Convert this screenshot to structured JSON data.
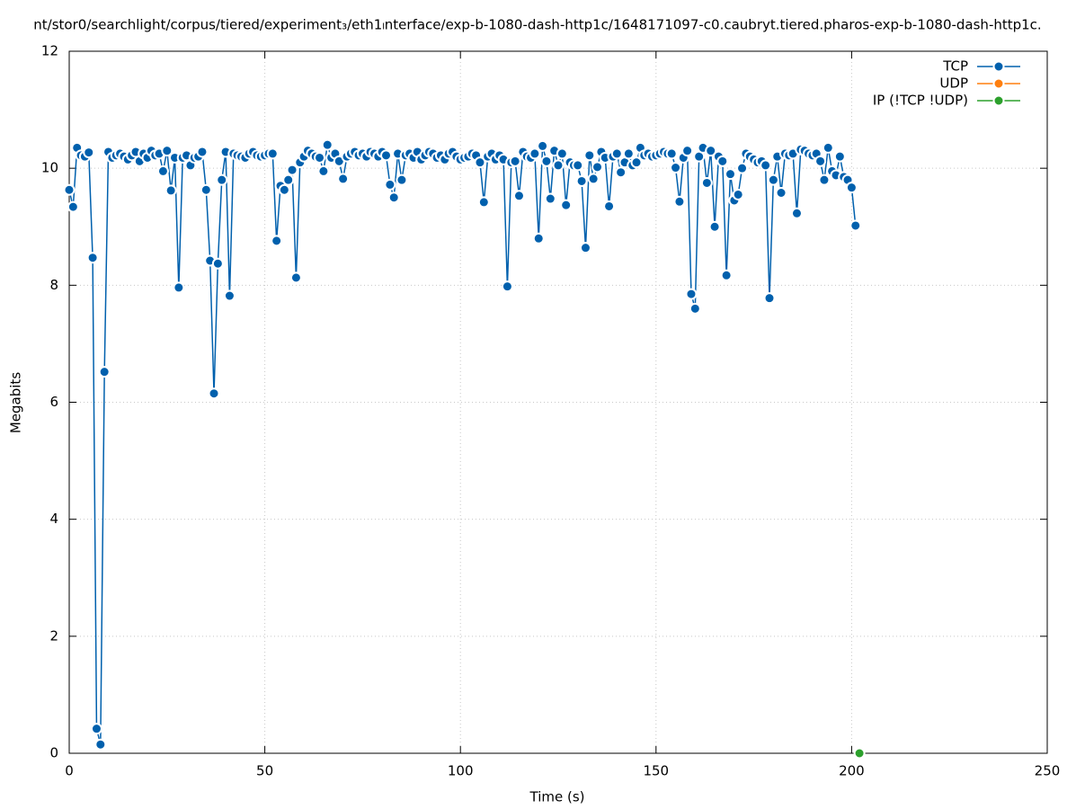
{
  "chart_data": {
    "type": "line",
    "title": "nt/stor0/searchlight/corpus/tiered/experiment₃/eth1ₗnterface/exp-b-1080-dash-http1c/1648171097-c0.caubryt.tiered.pharos-exp-b-1080-dash-http1c.",
    "xlabel": "Time (s)",
    "ylabel": "Megabits",
    "xlim": [
      0,
      250
    ],
    "ylim": [
      0,
      12
    ],
    "xticks": [
      0,
      50,
      100,
      150,
      200,
      250
    ],
    "yticks": [
      0,
      2,
      4,
      6,
      8,
      10,
      12
    ],
    "grid": true,
    "legend": "top right",
    "series": [
      {
        "name": "TCP",
        "color": "#0060ad",
        "x": [
          0,
          1,
          2,
          3,
          4,
          5,
          6,
          7,
          8,
          9,
          10,
          11,
          12,
          13,
          14,
          15,
          16,
          17,
          18,
          19,
          20,
          21,
          22,
          23,
          24,
          25,
          26,
          27,
          28,
          29,
          30,
          31,
          32,
          33,
          34,
          35,
          36,
          37,
          38,
          39,
          40,
          41,
          42,
          43,
          44,
          45,
          46,
          47,
          48,
          49,
          50,
          51,
          52,
          53,
          54,
          55,
          56,
          57,
          58,
          59,
          60,
          61,
          62,
          63,
          64,
          65,
          66,
          67,
          68,
          69,
          70,
          71,
          72,
          73,
          74,
          75,
          76,
          77,
          78,
          79,
          80,
          81,
          82,
          83,
          84,
          85,
          86,
          87,
          88,
          89,
          90,
          91,
          92,
          93,
          94,
          95,
          96,
          97,
          98,
          99,
          100,
          101,
          102,
          103,
          104,
          105,
          106,
          107,
          108,
          109,
          110,
          111,
          112,
          113,
          114,
          115,
          116,
          117,
          118,
          119,
          120,
          121,
          122,
          123,
          124,
          125,
          126,
          127,
          128,
          129,
          130,
          131,
          132,
          133,
          134,
          135,
          136,
          137,
          138,
          139,
          140,
          141,
          142,
          143,
          144,
          145,
          146,
          147,
          148,
          149,
          150,
          151,
          152,
          153,
          154,
          155,
          156,
          157,
          158,
          159,
          160,
          161,
          162,
          163,
          164,
          165,
          166,
          167,
          168,
          169,
          170,
          171,
          172,
          173,
          174,
          175,
          176,
          177,
          178,
          179,
          180,
          181,
          182,
          183,
          184,
          185,
          186,
          187,
          188,
          189,
          190,
          191,
          192,
          193,
          194,
          195,
          196,
          197,
          198,
          199,
          200,
          201
        ],
        "values": [
          9.63,
          9.34,
          10.35,
          10.22,
          10.2,
          10.27,
          8.47,
          0.42,
          0.15,
          6.52,
          10.28,
          10.18,
          10.22,
          10.25,
          10.2,
          10.15,
          10.22,
          10.28,
          10.12,
          10.25,
          10.18,
          10.3,
          10.22,
          10.25,
          9.95,
          10.3,
          9.62,
          10.18,
          7.96,
          10.18,
          10.22,
          10.05,
          10.18,
          10.2,
          10.28,
          9.63,
          8.42,
          6.15,
          8.37,
          9.8,
          10.28,
          7.82,
          10.25,
          10.22,
          10.2,
          10.18,
          10.25,
          10.28,
          10.22,
          10.2,
          10.22,
          10.25,
          10.25,
          8.76,
          9.7,
          9.63,
          9.8,
          9.97,
          8.13,
          10.1,
          10.2,
          10.3,
          10.25,
          10.2,
          10.18,
          9.95,
          10.4,
          10.18,
          10.25,
          10.12,
          9.82,
          10.2,
          10.25,
          10.28,
          10.22,
          10.25,
          10.2,
          10.28,
          10.25,
          10.2,
          10.28,
          10.22,
          9.72,
          9.5,
          10.25,
          9.8,
          10.22,
          10.25,
          10.18,
          10.28,
          10.15,
          10.22,
          10.28,
          10.25,
          10.18,
          10.22,
          10.15,
          10.25,
          10.28,
          10.2,
          10.15,
          10.18,
          10.2,
          10.25,
          10.22,
          10.1,
          9.42,
          10.2,
          10.25,
          10.15,
          10.22,
          10.15,
          7.98,
          10.1,
          10.12,
          9.53,
          10.28,
          10.2,
          10.18,
          10.25,
          8.8,
          10.38,
          10.12,
          9.48,
          10.3,
          10.05,
          10.25,
          9.37,
          10.1,
          10.05,
          10.05,
          9.78,
          8.64,
          10.22,
          9.82,
          10.02,
          10.28,
          10.18,
          9.35,
          10.2,
          10.25,
          9.93,
          10.1,
          10.25,
          10.05,
          10.1,
          10.35,
          10.22,
          10.25,
          10.2,
          10.22,
          10.25,
          10.28,
          10.25,
          10.25,
          10.01,
          9.43,
          10.18,
          10.3,
          7.85,
          7.6,
          10.2,
          10.35,
          9.75,
          10.3,
          9.0,
          10.2,
          10.12,
          8.17,
          9.9,
          9.45,
          9.55,
          10.0,
          10.25,
          10.2,
          10.15,
          10.1,
          10.12,
          10.05,
          7.78,
          9.8,
          10.2,
          9.58,
          10.25,
          10.22,
          10.25,
          9.23,
          10.32,
          10.3,
          10.25,
          10.22,
          10.25,
          10.12,
          9.8,
          10.35,
          9.95,
          9.88,
          10.2,
          9.85,
          9.8,
          9.67,
          9.02
        ]
      },
      {
        "name": "UDP",
        "color": "#ff7f0e",
        "x": [],
        "values": []
      },
      {
        "name": "IP (!TCP  !UDP)",
        "color": "#2ca02c",
        "x": [
          202
        ],
        "values": [
          0
        ]
      }
    ]
  }
}
